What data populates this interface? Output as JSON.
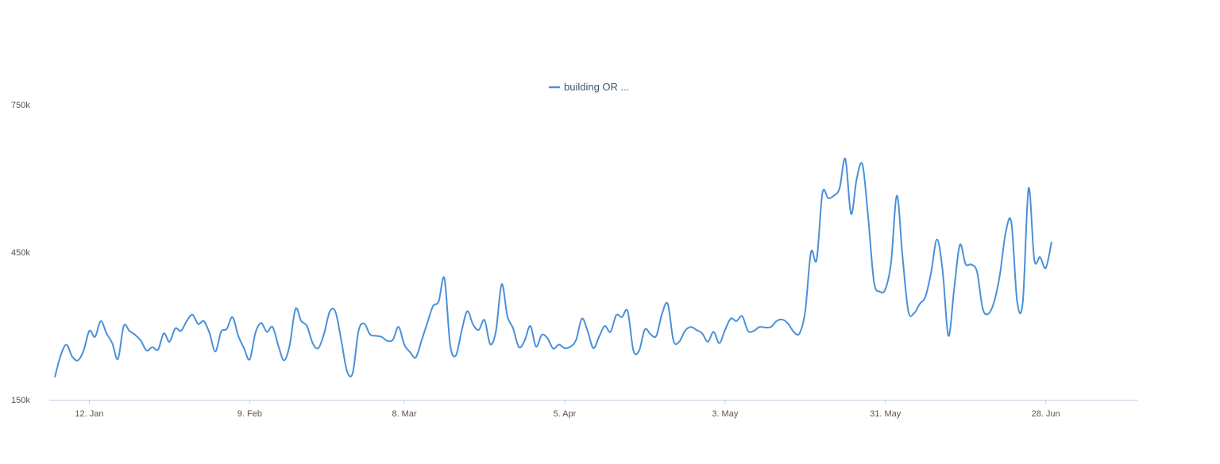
{
  "chart_data": {
    "type": "line",
    "ylim": [
      150000,
      750000
    ],
    "y_ticks": [
      {
        "value": 150000,
        "label": "150k"
      },
      {
        "value": 450000,
        "label": "450k"
      },
      {
        "value": 750000,
        "label": "750k"
      }
    ],
    "x_range": [
      "2019-01-05",
      "2019-07-14"
    ],
    "x_ticks": [
      {
        "date": "2019-01-12",
        "label": "12. Jan"
      },
      {
        "date": "2019-02-09",
        "label": "9. Feb"
      },
      {
        "date": "2019-03-08",
        "label": "8. Mar"
      },
      {
        "date": "2019-04-05",
        "label": "5. Apr"
      },
      {
        "date": "2019-05-03",
        "label": "3. May"
      },
      {
        "date": "2019-05-31",
        "label": "31. May"
      },
      {
        "date": "2019-06-28",
        "label": "28. Jun"
      }
    ],
    "grid": false,
    "legend_position": "top-center",
    "series": [
      {
        "name": "building OR ...",
        "color": "#4a90d9",
        "points": [
          [
            "2019-01-06",
            197000
          ],
          [
            "2019-01-07",
            240000
          ],
          [
            "2019-01-08",
            262000
          ],
          [
            "2019-01-09",
            238000
          ],
          [
            "2019-01-10",
            230000
          ],
          [
            "2019-01-11",
            250000
          ],
          [
            "2019-01-12",
            290000
          ],
          [
            "2019-01-13",
            278000
          ],
          [
            "2019-01-14",
            310000
          ],
          [
            "2019-01-15",
            285000
          ],
          [
            "2019-01-16",
            265000
          ],
          [
            "2019-01-17",
            233000
          ],
          [
            "2019-01-18",
            300000
          ],
          [
            "2019-01-19",
            290000
          ],
          [
            "2019-01-20",
            282000
          ],
          [
            "2019-01-21",
            270000
          ],
          [
            "2019-01-22",
            250000
          ],
          [
            "2019-01-23",
            257000
          ],
          [
            "2019-01-24",
            252000
          ],
          [
            "2019-01-25",
            285000
          ],
          [
            "2019-01-26",
            268000
          ],
          [
            "2019-01-27",
            295000
          ],
          [
            "2019-01-28",
            290000
          ],
          [
            "2019-01-29",
            310000
          ],
          [
            "2019-01-30",
            323000
          ],
          [
            "2019-01-31",
            304000
          ],
          [
            "2019-02-01",
            310000
          ],
          [
            "2019-02-02",
            285000
          ],
          [
            "2019-02-03",
            248000
          ],
          [
            "2019-02-04",
            288000
          ],
          [
            "2019-02-05",
            294000
          ],
          [
            "2019-02-06",
            318000
          ],
          [
            "2019-02-07",
            280000
          ],
          [
            "2019-02-08",
            255000
          ],
          [
            "2019-02-09",
            232000
          ],
          [
            "2019-02-10",
            286000
          ],
          [
            "2019-02-11",
            306000
          ],
          [
            "2019-02-12",
            288000
          ],
          [
            "2019-02-13",
            298000
          ],
          [
            "2019-02-14",
            260000
          ],
          [
            "2019-02-15",
            230000
          ],
          [
            "2019-02-16",
            262000
          ],
          [
            "2019-02-17",
            335000
          ],
          [
            "2019-02-18",
            310000
          ],
          [
            "2019-02-19",
            300000
          ],
          [
            "2019-02-20",
            265000
          ],
          [
            "2019-02-21",
            255000
          ],
          [
            "2019-02-22",
            285000
          ],
          [
            "2019-02-23",
            330000
          ],
          [
            "2019-02-24",
            328000
          ],
          [
            "2019-02-25",
            270000
          ],
          [
            "2019-02-26",
            208000
          ],
          [
            "2019-02-27",
            205000
          ],
          [
            "2019-02-28",
            290000
          ],
          [
            "2019-03-01",
            305000
          ],
          [
            "2019-03-02",
            283000
          ],
          [
            "2019-03-03",
            280000
          ],
          [
            "2019-03-04",
            278000
          ],
          [
            "2019-03-05",
            270000
          ],
          [
            "2019-03-06",
            272000
          ],
          [
            "2019-03-07",
            298000
          ],
          [
            "2019-03-08",
            262000
          ],
          [
            "2019-03-09",
            247000
          ],
          [
            "2019-03-10",
            236000
          ],
          [
            "2019-03-11",
            270000
          ],
          [
            "2019-03-12",
            306000
          ],
          [
            "2019-03-13",
            340000
          ],
          [
            "2019-03-14",
            350000
          ],
          [
            "2019-03-15",
            397000
          ],
          [
            "2019-03-16",
            262000
          ],
          [
            "2019-03-17",
            240000
          ],
          [
            "2019-03-18",
            290000
          ],
          [
            "2019-03-19",
            330000
          ],
          [
            "2019-03-20",
            303000
          ],
          [
            "2019-03-21",
            292000
          ],
          [
            "2019-03-22",
            312000
          ],
          [
            "2019-03-23",
            263000
          ],
          [
            "2019-03-24",
            290000
          ],
          [
            "2019-03-25",
            385000
          ],
          [
            "2019-03-26",
            320000
          ],
          [
            "2019-03-27",
            295000
          ],
          [
            "2019-03-28",
            257000
          ],
          [
            "2019-03-29",
            270000
          ],
          [
            "2019-03-30",
            300000
          ],
          [
            "2019-03-31",
            258000
          ],
          [
            "2019-04-01",
            282000
          ],
          [
            "2019-04-02",
            275000
          ],
          [
            "2019-04-03",
            254000
          ],
          [
            "2019-04-04",
            262000
          ],
          [
            "2019-04-05",
            255000
          ],
          [
            "2019-04-06",
            258000
          ],
          [
            "2019-04-07",
            272000
          ],
          [
            "2019-04-08",
            315000
          ],
          [
            "2019-04-09",
            290000
          ],
          [
            "2019-04-10",
            255000
          ],
          [
            "2019-04-11",
            278000
          ],
          [
            "2019-04-12",
            300000
          ],
          [
            "2019-04-13",
            288000
          ],
          [
            "2019-04-14",
            322000
          ],
          [
            "2019-04-15",
            318000
          ],
          [
            "2019-04-16",
            330000
          ],
          [
            "2019-04-17",
            250000
          ],
          [
            "2019-04-18",
            250000
          ],
          [
            "2019-04-19",
            293000
          ],
          [
            "2019-04-20",
            283000
          ],
          [
            "2019-04-21",
            280000
          ],
          [
            "2019-04-22",
            325000
          ],
          [
            "2019-04-23",
            345000
          ],
          [
            "2019-04-24",
            270000
          ],
          [
            "2019-04-25",
            268000
          ],
          [
            "2019-04-26",
            290000
          ],
          [
            "2019-04-27",
            298000
          ],
          [
            "2019-04-28",
            292000
          ],
          [
            "2019-04-29",
            285000
          ],
          [
            "2019-04-30",
            268000
          ],
          [
            "2019-05-01",
            288000
          ],
          [
            "2019-05-02",
            265000
          ],
          [
            "2019-05-03",
            292000
          ],
          [
            "2019-05-04",
            315000
          ],
          [
            "2019-05-05",
            310000
          ],
          [
            "2019-05-06",
            320000
          ],
          [
            "2019-05-07",
            290000
          ],
          [
            "2019-05-08",
            290000
          ],
          [
            "2019-05-09",
            298000
          ],
          [
            "2019-05-10",
            297000
          ],
          [
            "2019-05-11",
            298000
          ],
          [
            "2019-05-12",
            310000
          ],
          [
            "2019-05-13",
            313000
          ],
          [
            "2019-05-14",
            305000
          ],
          [
            "2019-05-15",
            288000
          ],
          [
            "2019-05-16",
            285000
          ],
          [
            "2019-05-17",
            330000
          ],
          [
            "2019-05-18",
            450000
          ],
          [
            "2019-05-19",
            435000
          ],
          [
            "2019-05-20",
            570000
          ],
          [
            "2019-05-21",
            560000
          ],
          [
            "2019-05-22",
            565000
          ],
          [
            "2019-05-23",
            580000
          ],
          [
            "2019-05-24",
            640000
          ],
          [
            "2019-05-25",
            528000
          ],
          [
            "2019-05-26",
            600000
          ],
          [
            "2019-05-27",
            628000
          ],
          [
            "2019-05-28",
            520000
          ],
          [
            "2019-05-29",
            390000
          ],
          [
            "2019-05-30",
            370000
          ],
          [
            "2019-05-31",
            375000
          ],
          [
            "2019-06-01",
            430000
          ],
          [
            "2019-06-02",
            565000
          ],
          [
            "2019-06-03",
            440000
          ],
          [
            "2019-06-04",
            330000
          ],
          [
            "2019-06-05",
            326000
          ],
          [
            "2019-06-06",
            345000
          ],
          [
            "2019-06-07",
            360000
          ],
          [
            "2019-06-08",
            410000
          ],
          [
            "2019-06-09",
            476000
          ],
          [
            "2019-06-10",
            412000
          ],
          [
            "2019-06-11",
            280000
          ],
          [
            "2019-06-12",
            375000
          ],
          [
            "2019-06-13",
            465000
          ],
          [
            "2019-06-14",
            426000
          ],
          [
            "2019-06-15",
            425000
          ],
          [
            "2019-06-16",
            410000
          ],
          [
            "2019-06-17",
            335000
          ],
          [
            "2019-06-18",
            325000
          ],
          [
            "2019-06-19",
            350000
          ],
          [
            "2019-06-20",
            405000
          ],
          [
            "2019-06-21",
            490000
          ],
          [
            "2019-06-22",
            510000
          ],
          [
            "2019-06-23",
            350000
          ],
          [
            "2019-06-24",
            350000
          ],
          [
            "2019-06-25",
            580000
          ],
          [
            "2019-06-26",
            435000
          ],
          [
            "2019-06-27",
            440000
          ],
          [
            "2019-06-28",
            418000
          ],
          [
            "2019-06-29",
            470000
          ]
        ]
      }
    ]
  }
}
